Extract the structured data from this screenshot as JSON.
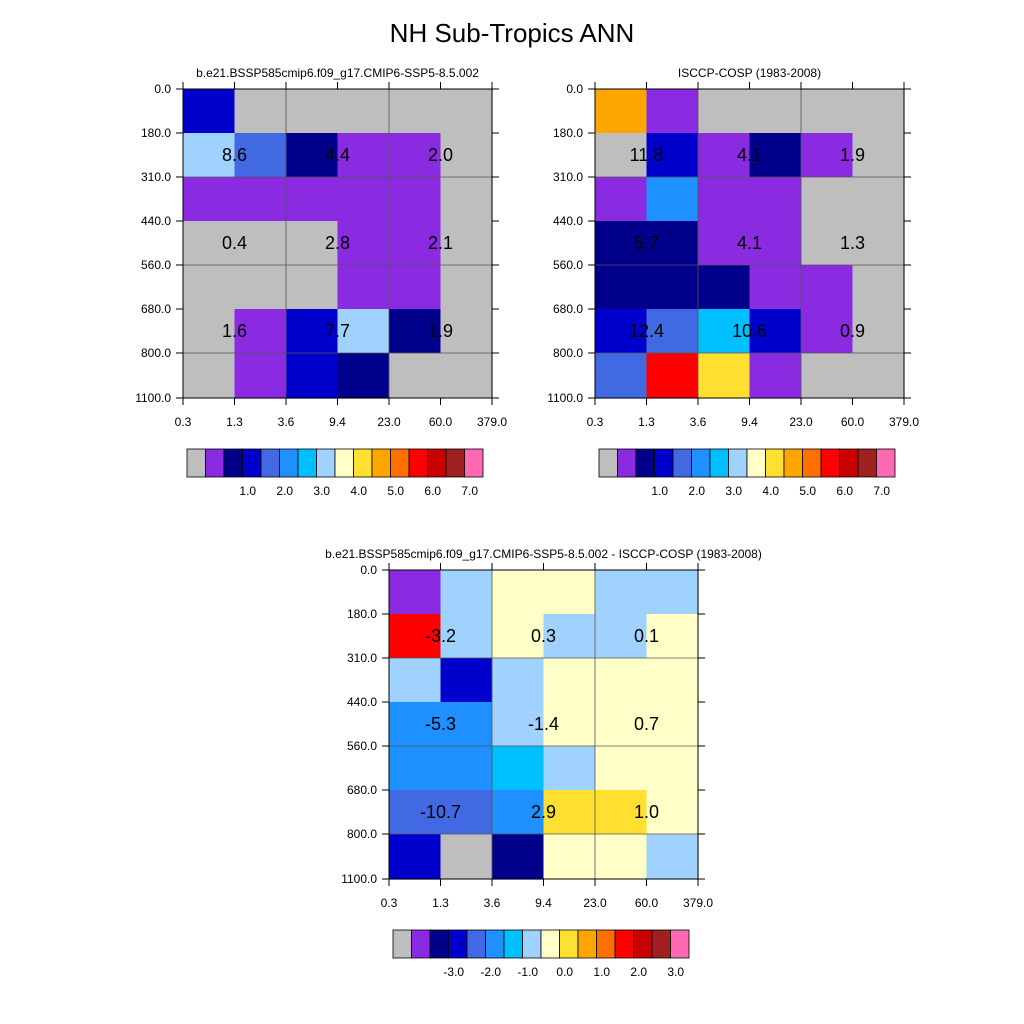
{
  "figure_title": "NH Sub-Tropics ANN",
  "chart_data": [
    {
      "type": "heatmap",
      "title": "b.e21.BSSP585cmip6.f09_g17.CMIP6-SSP5-8.5.002",
      "x_ticks": [
        "0.3",
        "1.3",
        "3.6",
        "9.4",
        "23.0",
        "60.0",
        "379.0"
      ],
      "y_ticks": [
        "0.0",
        "180.0",
        "310.0",
        "440.0",
        "560.0",
        "680.0",
        "800.0",
        "1100.0"
      ],
      "cells": [
        [
          3,
          0,
          0,
          0,
          0,
          0
        ],
        [
          7,
          4,
          2,
          1,
          1,
          0
        ],
        [
          1,
          1,
          1,
          1,
          1,
          0
        ],
        [
          0,
          0,
          0,
          1,
          1,
          0
        ],
        [
          0,
          0,
          0,
          1,
          1,
          0
        ],
        [
          0,
          1,
          3,
          7,
          2,
          0
        ],
        [
          0,
          1,
          3,
          2,
          0,
          0
        ]
      ],
      "annotations": [
        {
          "row": 1,
          "col": 1,
          "text": "8.6"
        },
        {
          "row": 1,
          "col": 3,
          "text": "4.4"
        },
        {
          "row": 1,
          "col": 5,
          "text": "2.0"
        },
        {
          "row": 3,
          "col": 1,
          "text": "0.4"
        },
        {
          "row": 3,
          "col": 3,
          "text": "2.8"
        },
        {
          "row": 3,
          "col": 5,
          "text": "2.1"
        },
        {
          "row": 5,
          "col": 1,
          "text": "1.6"
        },
        {
          "row": 5,
          "col": 3,
          "text": "7.7"
        },
        {
          "row": 5,
          "col": 5,
          "text": "1.9"
        }
      ],
      "colorbar": {
        "colors": [
          "#bebebe",
          "#8a2be2",
          "#00008b",
          "#0000cd",
          "#4169e1",
          "#1e90ff",
          "#00bfff",
          "#a0d2ff",
          "#ffffc8",
          "#ffe030",
          "#ffa500",
          "#ff7000",
          "#ff0000",
          "#c80000",
          "#a02020",
          "#ff69b4"
        ],
        "labels": [
          "1.0",
          "2.0",
          "3.0",
          "4.0",
          "5.0",
          "6.0",
          "7.0"
        ],
        "label_after_box": [
          4,
          6,
          8,
          10,
          12,
          14,
          16
        ]
      }
    },
    {
      "type": "heatmap",
      "title": "ISCCP-COSP (1983-2008)",
      "x_ticks": [
        "0.3",
        "1.3",
        "3.6",
        "9.4",
        "23.0",
        "60.0",
        "379.0"
      ],
      "y_ticks": [
        "0.0",
        "180.0",
        "310.0",
        "440.0",
        "560.0",
        "680.0",
        "800.0",
        "1100.0"
      ],
      "cells": [
        [
          10,
          1,
          0,
          0,
          0,
          0
        ],
        [
          0,
          3,
          1,
          2,
          1,
          0
        ],
        [
          1,
          5,
          1,
          1,
          0,
          0
        ],
        [
          2,
          2,
          1,
          1,
          0,
          0
        ],
        [
          2,
          2,
          2,
          1,
          1,
          0
        ],
        [
          3,
          4,
          6,
          3,
          1,
          0
        ],
        [
          4,
          12,
          9,
          1,
          0,
          0
        ]
      ],
      "annotations": [
        {
          "row": 1,
          "col": 1,
          "text": "11.8"
        },
        {
          "row": 1,
          "col": 3,
          "text": "4.1"
        },
        {
          "row": 1,
          "col": 5,
          "text": "1.9"
        },
        {
          "row": 3,
          "col": 1,
          "text": "5.7"
        },
        {
          "row": 3,
          "col": 3,
          "text": "4.1"
        },
        {
          "row": 3,
          "col": 5,
          "text": "1.3"
        },
        {
          "row": 5,
          "col": 1,
          "text": "12.4"
        },
        {
          "row": 5,
          "col": 3,
          "text": "10.6"
        },
        {
          "row": 5,
          "col": 5,
          "text": "0.9"
        }
      ],
      "colorbar": {
        "colors": [
          "#bebebe",
          "#8a2be2",
          "#00008b",
          "#0000cd",
          "#4169e1",
          "#1e90ff",
          "#00bfff",
          "#a0d2ff",
          "#ffffc8",
          "#ffe030",
          "#ffa500",
          "#ff7000",
          "#ff0000",
          "#c80000",
          "#a02020",
          "#ff69b4"
        ],
        "labels": [
          "1.0",
          "2.0",
          "3.0",
          "4.0",
          "5.0",
          "6.0",
          "7.0"
        ],
        "label_after_box": [
          4,
          6,
          8,
          10,
          12,
          14,
          16
        ]
      }
    },
    {
      "type": "heatmap",
      "title": "b.e21.BSSP585cmip6.f09_g17.CMIP6-SSP5-8.5.002 - ISCCP-COSP (1983-2008)",
      "x_ticks": [
        "0.3",
        "1.3",
        "3.6",
        "9.4",
        "23.0",
        "60.0",
        "379.0"
      ],
      "y_ticks": [
        "0.0",
        "180.0",
        "310.0",
        "440.0",
        "560.0",
        "680.0",
        "800.0",
        "1100.0"
      ],
      "cells": [
        [
          1,
          7,
          8,
          8,
          7,
          7
        ],
        [
          12,
          7,
          8,
          7,
          7,
          8
        ],
        [
          7,
          3,
          7,
          8,
          8,
          8
        ],
        [
          5,
          5,
          7,
          8,
          8,
          8
        ],
        [
          5,
          5,
          6,
          7,
          8,
          8
        ],
        [
          4,
          4,
          5,
          9,
          9,
          8
        ],
        [
          3,
          0,
          2,
          8,
          8,
          7
        ]
      ],
      "annotations": [
        {
          "row": 1,
          "col": 1,
          "text": "-3.2"
        },
        {
          "row": 1,
          "col": 3,
          "text": "0.3"
        },
        {
          "row": 1,
          "col": 5,
          "text": "0.1"
        },
        {
          "row": 3,
          "col": 1,
          "text": "-5.3"
        },
        {
          "row": 3,
          "col": 3,
          "text": "-1.4"
        },
        {
          "row": 3,
          "col": 5,
          "text": "0.7"
        },
        {
          "row": 5,
          "col": 1,
          "text": "-10.7"
        },
        {
          "row": 5,
          "col": 3,
          "text": "2.9"
        },
        {
          "row": 5,
          "col": 5,
          "text": "1.0"
        }
      ],
      "colorbar": {
        "colors": [
          "#bebebe",
          "#8a2be2",
          "#00008b",
          "#0000cd",
          "#4169e1",
          "#1e90ff",
          "#00bfff",
          "#a0d2ff",
          "#ffffc8",
          "#ffe030",
          "#ffa500",
          "#ff7000",
          "#ff0000",
          "#c80000",
          "#a02020",
          "#ff69b4"
        ],
        "labels": [
          "-3.0",
          "-2.0",
          "-1.0",
          "0.0",
          "1.0",
          "2.0",
          "3.0"
        ],
        "label_after_box": [
          4,
          6,
          8,
          10,
          12,
          14,
          16
        ]
      }
    }
  ]
}
